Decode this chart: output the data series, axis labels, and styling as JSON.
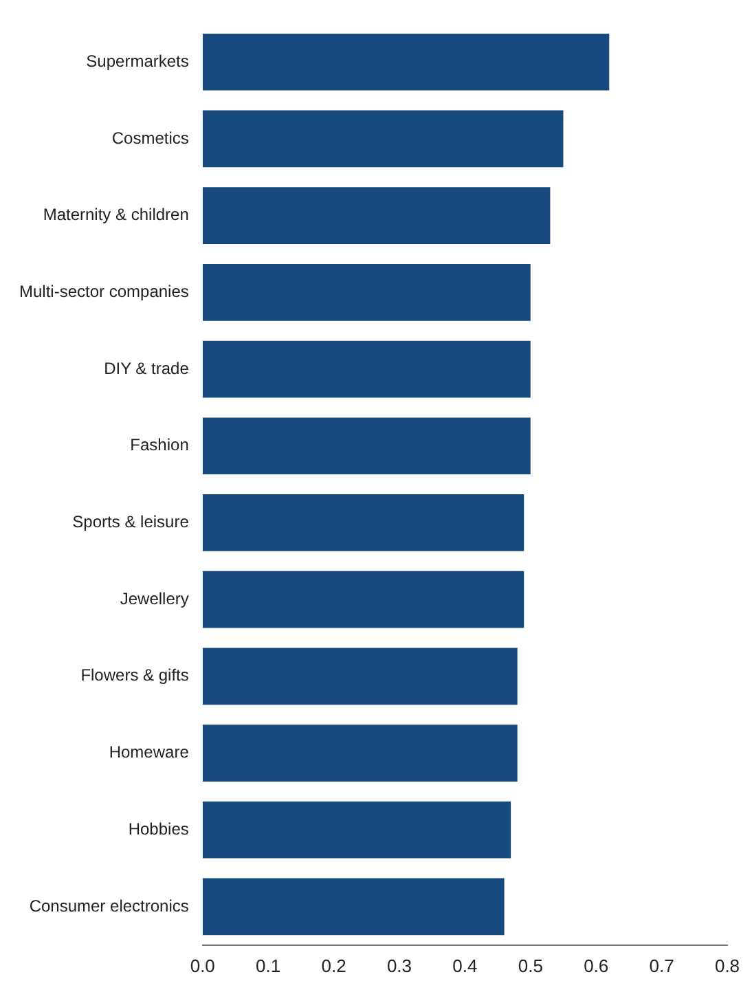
{
  "chart_data": {
    "type": "bar",
    "orientation": "horizontal",
    "categories": [
      "Supermarkets",
      "Cosmetics",
      "Maternity & children",
      "Multi-sector companies",
      "DIY & trade",
      "Fashion",
      "Sports & leisure",
      "Jewellery",
      "Flowers & gifts",
      "Homeware",
      "Hobbies",
      "Consumer electronics"
    ],
    "values": [
      0.62,
      0.55,
      0.53,
      0.5,
      0.5,
      0.5,
      0.49,
      0.49,
      0.48,
      0.48,
      0.47,
      0.46
    ],
    "color": "#174a7e",
    "xlim": [
      0,
      0.8
    ],
    "xticks": [
      "0.0",
      0.1,
      0.2,
      0.3,
      0.4,
      0.5,
      0.6,
      0.7,
      0.8
    ],
    "grid": false,
    "legend": false
  }
}
